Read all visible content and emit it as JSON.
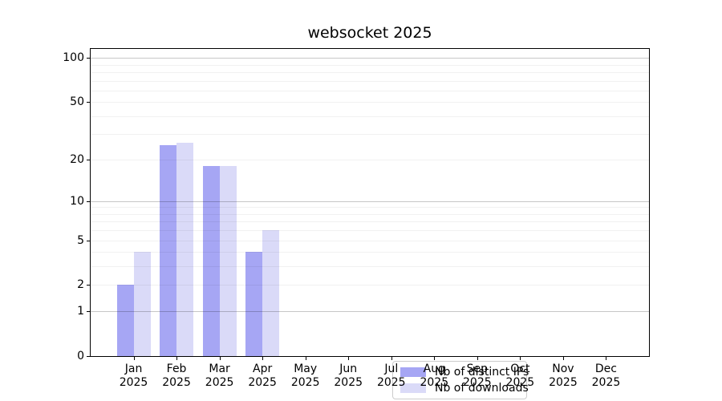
{
  "chart_data": {
    "type": "bar",
    "title": "websocket 2025",
    "x_axis": {
      "months": [
        "Jan",
        "Feb",
        "Mar",
        "Apr",
        "May",
        "Jun",
        "Jul",
        "Aug",
        "Sep",
        "Oct",
        "Nov",
        "Dec"
      ],
      "year": "2025"
    },
    "y_axis": {
      "scale": "log10(1+value)",
      "tick_values": [
        0,
        1,
        2,
        5,
        10,
        20,
        50,
        100
      ],
      "ymax": 115
    },
    "series": [
      {
        "name": "Nb of distinct IPs",
        "color": "#a6a6f4",
        "values": [
          2,
          25,
          18,
          4,
          0,
          0,
          0,
          0,
          0,
          0,
          0,
          0
        ]
      },
      {
        "name": "Nb of downloads",
        "color": "#dadaf8",
        "values": [
          4,
          26,
          18,
          6,
          0,
          0,
          0,
          0,
          0,
          0,
          0,
          0
        ]
      }
    ],
    "grid": {
      "major_values": [
        1,
        10,
        100
      ],
      "minor_values": [
        2,
        3,
        4,
        5,
        6,
        7,
        8,
        9,
        20,
        30,
        40,
        50,
        60,
        70,
        80,
        90
      ],
      "major_color": "rgba(0,0,0,0.22)",
      "minor_color": "rgba(0,0,0,0.055)"
    },
    "legend": {
      "position": "lower center"
    }
  }
}
